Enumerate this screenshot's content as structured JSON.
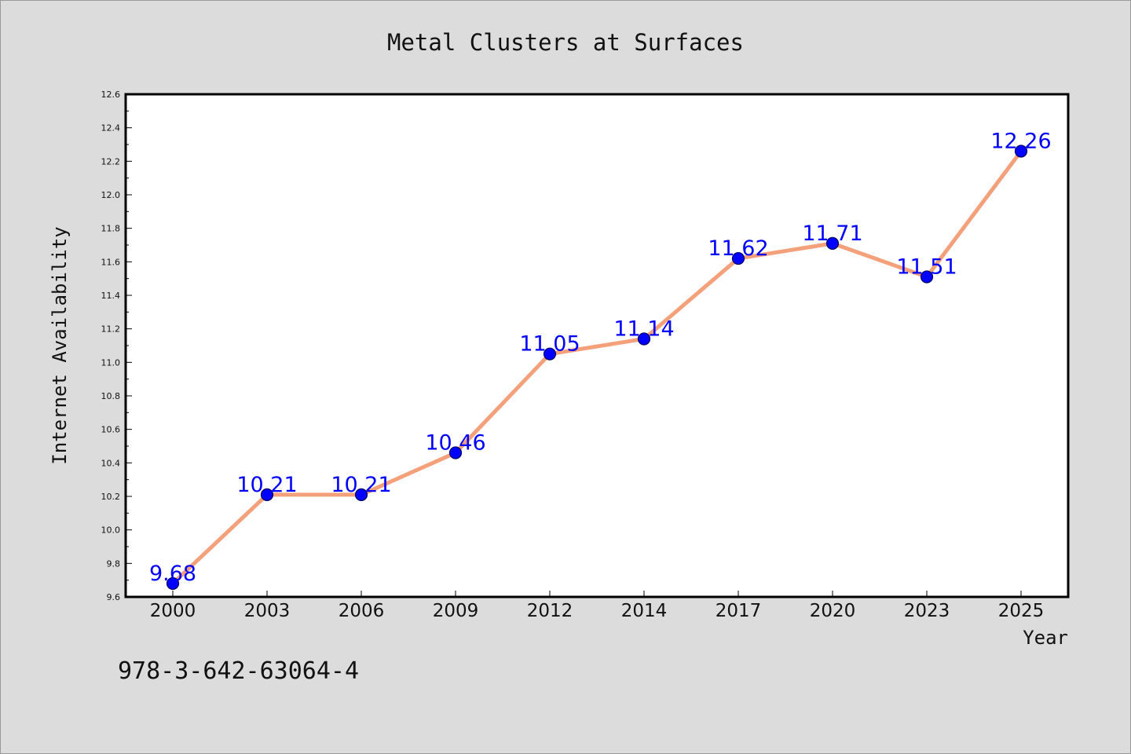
{
  "chart_data": {
    "type": "line",
    "title": "Metal Clusters at Surfaces",
    "xlabel": "Year",
    "ylabel": "Internet Availability",
    "categories": [
      "2000",
      "2003",
      "2006",
      "2009",
      "2012",
      "2014",
      "2017",
      "2020",
      "2023",
      "2025"
    ],
    "series": [
      {
        "values": [
          9.68,
          10.21,
          10.21,
          10.46,
          11.05,
          11.14,
          11.62,
          11.71,
          11.51,
          12.26
        ],
        "labels": [
          "9.68",
          "10.21",
          "10.21",
          "10.46",
          "11.05",
          "11.14",
          "11.62",
          "11.71",
          "11.51",
          "12.26"
        ],
        "line_color": "#f4a07a",
        "marker_color": "#0000ff"
      }
    ],
    "ylim": [
      9.6,
      12.6
    ],
    "yticks": [
      "9.6",
      "9.8",
      "10.0",
      "10.2",
      "10.4",
      "10.6",
      "10.8",
      "11.0",
      "11.2",
      "11.4",
      "11.6",
      "11.8",
      "12.0",
      "12.2",
      "12.4",
      "12.6"
    ],
    "grid": false,
    "legend": "none"
  },
  "footnote": "978-3-642-63064-4",
  "colors": {
    "background": "#dcdcdc",
    "plot_background": "#ffffff",
    "axis": "#000000",
    "data_label": "#0000ff"
  }
}
